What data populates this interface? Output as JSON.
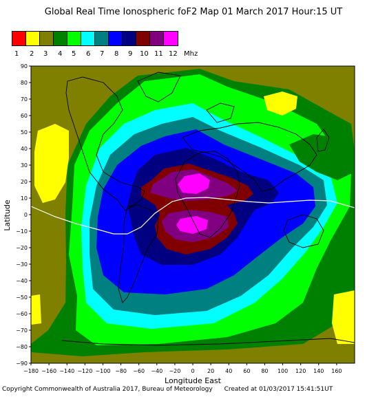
{
  "title": "Global Real Time Ionospheric foF2 Map  01 March 2017 Hour:15 UT",
  "legend": {
    "colors": [
      "#ff0000",
      "#ffff00",
      "#808000",
      "#008000",
      "#00ff00",
      "#00ffff",
      "#008080",
      "#0000ff",
      "#000080",
      "#800000",
      "#800080",
      "#ff00ff"
    ],
    "labels": [
      "1",
      "2",
      "3",
      "4",
      "5",
      "6",
      "7",
      "8",
      "9",
      "10",
      "11",
      "12"
    ],
    "unit": "Mhz"
  },
  "axes": {
    "xlabel": "Longitude East",
    "ylabel": "Latitude",
    "xticks": [
      "−180",
      "−160",
      "−140",
      "−120",
      "−100",
      "−80",
      "−60",
      "−40",
      "−20",
      "0",
      "20",
      "40",
      "60",
      "80",
      "100",
      "120",
      "140",
      "160"
    ],
    "yticks": [
      "90",
      "80",
      "70",
      "60",
      "50",
      "40",
      "30",
      "20",
      "10",
      "0",
      "−10",
      "−20",
      "−30",
      "−40",
      "−50",
      "−60",
      "−70",
      "−80",
      "−90"
    ],
    "xlim": [
      -180,
      180
    ],
    "ylim": [
      -90,
      90
    ]
  },
  "footer": {
    "copyright": "Copyright Commonwealth of Australia 2017, Bureau of Meteorology",
    "created": "Created at 01/03/2017 15:41:51UT"
  }
}
